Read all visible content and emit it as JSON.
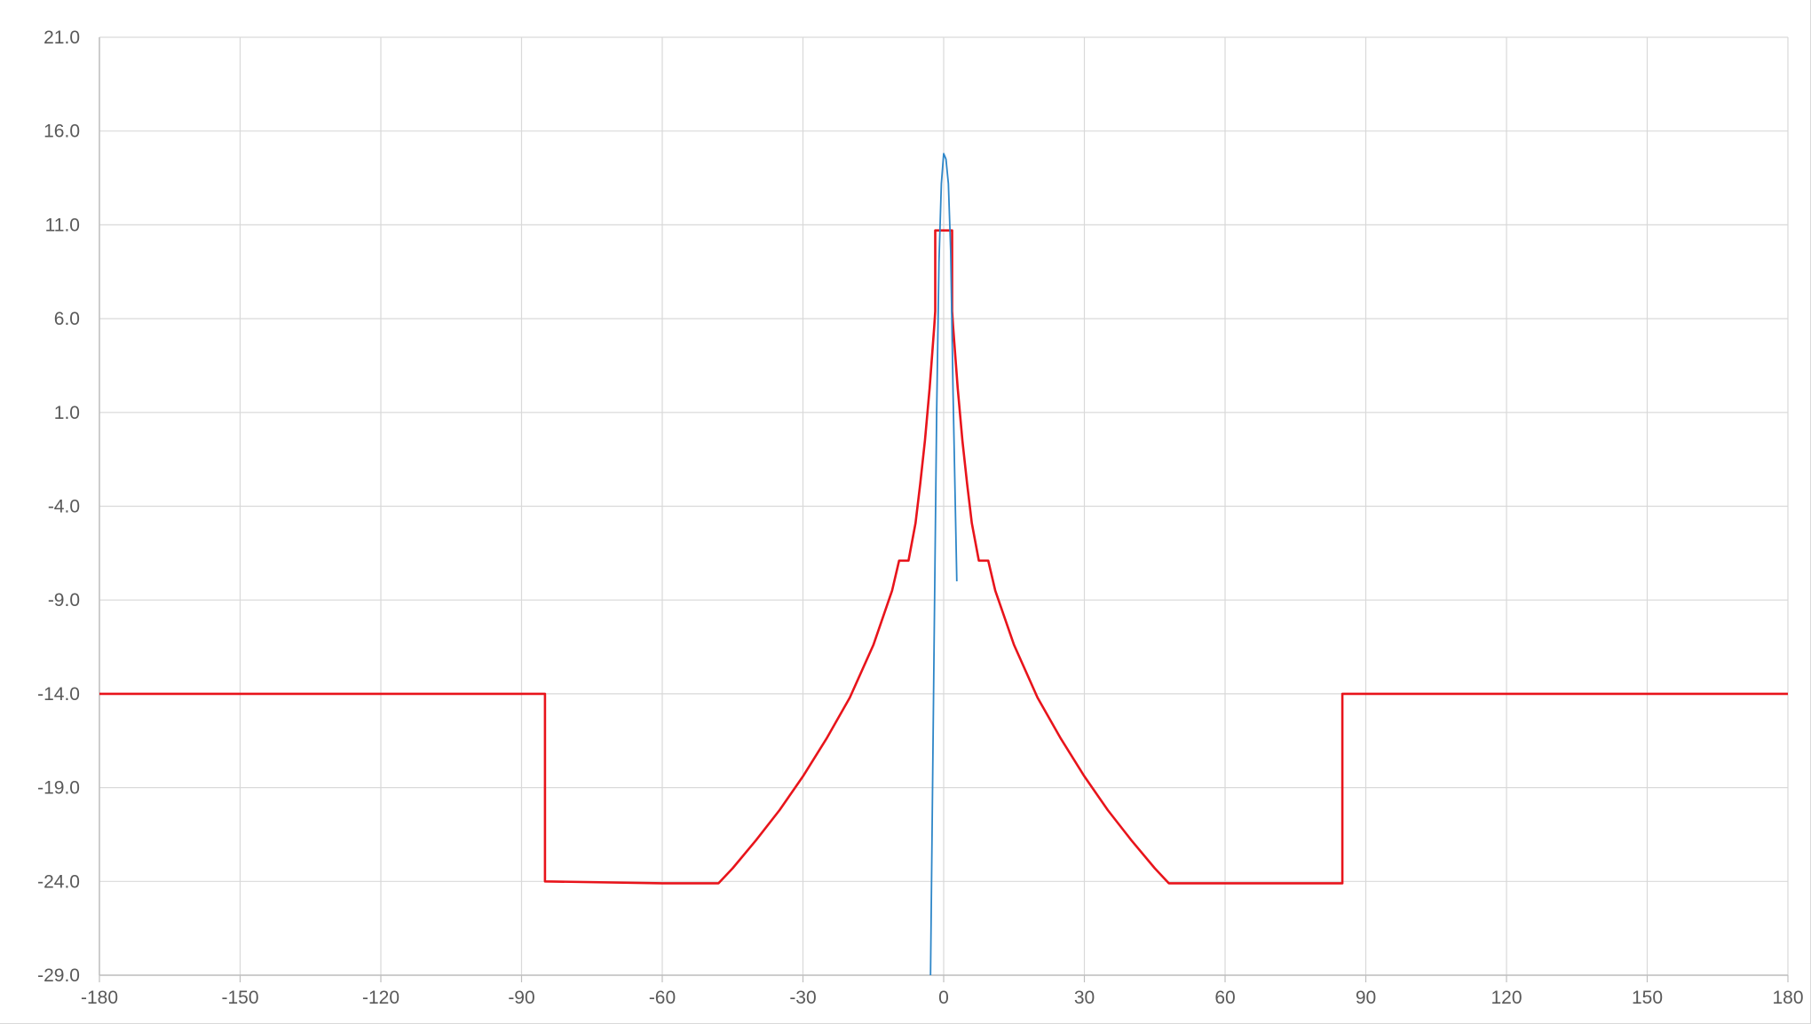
{
  "chart_data": {
    "type": "line",
    "title": "",
    "xlabel": "",
    "ylabel": "",
    "xlim": [
      -180,
      180
    ],
    "ylim": [
      -29,
      21
    ],
    "grid": true,
    "legend": "none",
    "x_ticks": [
      -180,
      -150,
      -120,
      -90,
      -60,
      -30,
      0,
      30,
      60,
      90,
      120,
      150,
      180
    ],
    "x_tick_labels": [
      "-180",
      "-150",
      "-120",
      "-90",
      "-60",
      "-30",
      "0",
      "30",
      "60",
      "90",
      "120",
      "150",
      "180"
    ],
    "y_ticks": [
      21,
      16,
      11,
      6,
      1,
      -4,
      -9,
      -14,
      -19,
      -24,
      -29
    ],
    "y_tick_labels": [
      "21.0",
      "16.0",
      "11.0",
      "6.0",
      "1.0",
      "-4.0",
      "-9.0",
      "-14.0",
      "-19.0",
      "-24.0",
      "-29.0"
    ],
    "colors": {
      "mask": "#e8141b",
      "pattern": "#2e86c8",
      "grid": "#d9d9d9",
      "axis": "#bfbfbf",
      "tick_text": "#595959"
    },
    "series": [
      {
        "color": "#e8141b",
        "x": [
          -180,
          -85,
          -85,
          -60,
          -48,
          -45,
          -40,
          -35,
          -30,
          -25,
          -20,
          -15,
          -11,
          -9.5,
          -7.5,
          -6,
          -5,
          -4,
          -3,
          -2,
          -1.8,
          -1.8,
          1.8,
          1.8,
          2,
          3,
          4,
          5,
          6,
          7.5,
          9.5,
          11,
          15,
          20,
          25,
          30,
          35,
          40,
          45,
          48,
          60,
          85,
          85,
          180
        ],
        "y": [
          -14,
          -14,
          -24,
          -24.1,
          -24.1,
          -23.3,
          -21.8,
          -20.2,
          -18.4,
          -16.4,
          -14.2,
          -11.4,
          -8.5,
          -6.9,
          -6.9,
          -4.9,
          -2.8,
          -0.5,
          2.3,
          5.6,
          6.4,
          10.7,
          10.7,
          6.4,
          5.6,
          2.3,
          -0.5,
          -2.8,
          -4.9,
          -6.9,
          -6.9,
          -8.5,
          -11.4,
          -14.2,
          -16.4,
          -18.4,
          -20.2,
          -21.8,
          -23.3,
          -24.1,
          -24.1,
          -24.1,
          -14,
          -14
        ]
      },
      {
        "color": "#2e86c8",
        "x": [
          -2.8,
          -2,
          -1.5,
          -1,
          -0.5,
          0,
          0.5,
          1,
          1.5,
          2,
          2.8
        ],
        "y": [
          -29,
          -10.6,
          1.0,
          9.0,
          13.2,
          14.8,
          14.5,
          13.2,
          9.6,
          2.0,
          -8.0
        ]
      }
    ]
  }
}
